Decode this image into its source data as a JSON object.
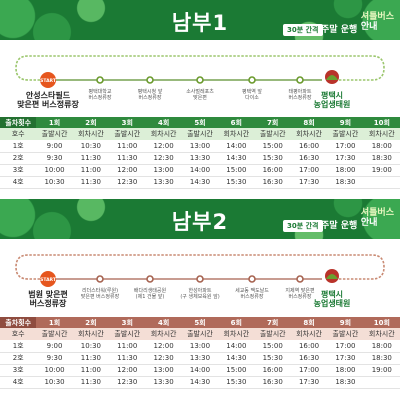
{
  "sections": [
    {
      "title": "남부1",
      "interval": "30분 간격",
      "operation": "주말 운행",
      "shuttle_a": "셔틀버스",
      "shuttle_b": "안내",
      "start_label": "START",
      "stations": [
        {
          "l1": "안성스타필드",
          "l2": "맞은편 버스정류장"
        },
        {
          "l1": "평택대학교",
          "l2": "버스정류장"
        },
        {
          "l1": "평택시청 앞",
          "l2": "버스정류장"
        },
        {
          "l1": "소사벌레포츠",
          "l2": "맞은편"
        },
        {
          "l1": "평택역 앞",
          "l2": "다이소"
        },
        {
          "l1": "태평아파트",
          "l2": "버스정류장"
        },
        {
          "l1": "평택시",
          "l2": "농업생태원"
        }
      ],
      "table": {
        "group_header": [
          "출차횟수",
          "1회",
          "2회",
          "3회",
          "4회",
          "5회",
          "6회",
          "7회",
          "8회",
          "9회",
          "10회"
        ],
        "sub_header": [
          "호수",
          "출발시간",
          "회차시간",
          "출발시간",
          "회차시간",
          "출발시간",
          "회차시간",
          "출발시간",
          "회차시간",
          "출발시간",
          "회차시간"
        ],
        "rows": [
          [
            "1호",
            "9:00",
            "10:30",
            "11:00",
            "12:00",
            "13:00",
            "14:00",
            "15:00",
            "16:00",
            "17:00",
            "18:00"
          ],
          [
            "2호",
            "9:30",
            "11:30",
            "11:30",
            "12:30",
            "13:30",
            "14:30",
            "15:30",
            "16:30",
            "17:30",
            "18:30"
          ],
          [
            "3호",
            "10:00",
            "11:00",
            "12:00",
            "13:00",
            "14:00",
            "15:00",
            "16:00",
            "17:00",
            "18:00",
            "19:00"
          ],
          [
            "4호",
            "10:30",
            "11:30",
            "12:30",
            "13:30",
            "14:30",
            "15:30",
            "16:30",
            "17:30",
            "18:30",
            ""
          ]
        ]
      }
    },
    {
      "title": "남부2",
      "interval": "30분 간격",
      "operation": "주말 운행",
      "shuttle_a": "셔틀버스",
      "shuttle_b": "안내",
      "start_label": "START",
      "stations": [
        {
          "l1": "범원 맞은편",
          "l2": "버스정류장"
        },
        {
          "l1": "리더스타워(루원)",
          "l2": "맞은편 버스정류장"
        },
        {
          "l1": "배다리생태공원",
          "l2": "(제1 건물 앞)"
        },
        {
          "l1": "한성아파트",
          "l2": "(구 생체보육원 앞)"
        },
        {
          "l1": "세교동 맥도날드",
          "l2": "버스정류장"
        },
        {
          "l1": "지제역 맞은편",
          "l2": "버스정류장"
        },
        {
          "l1": "평택시",
          "l2": "농업생태원"
        }
      ],
      "table": {
        "group_header": [
          "출차횟수",
          "1회",
          "2회",
          "3회",
          "4회",
          "5회",
          "6회",
          "7회",
          "8회",
          "9회",
          "10회"
        ],
        "sub_header": [
          "호수",
          "출발시간",
          "회차시간",
          "출발시간",
          "회차시간",
          "출발시간",
          "회차시간",
          "출발시간",
          "회차시간",
          "출발시간",
          "회차시간"
        ],
        "rows": [
          [
            "1호",
            "9:00",
            "10:30",
            "11:00",
            "12:00",
            "13:00",
            "14:00",
            "15:00",
            "16:00",
            "17:00",
            "18:00"
          ],
          [
            "2호",
            "9:30",
            "11:30",
            "11:30",
            "12:30",
            "13:30",
            "14:30",
            "15:30",
            "16:30",
            "17:30",
            "18:30"
          ],
          [
            "3호",
            "10:00",
            "11:00",
            "12:00",
            "13:00",
            "14:00",
            "15:00",
            "16:00",
            "17:00",
            "18:00",
            "19:00"
          ],
          [
            "4호",
            "10:30",
            "11:30",
            "12:30",
            "13:30",
            "14:30",
            "15:30",
            "16:30",
            "17:30",
            "18:30",
            ""
          ]
        ]
      }
    }
  ]
}
